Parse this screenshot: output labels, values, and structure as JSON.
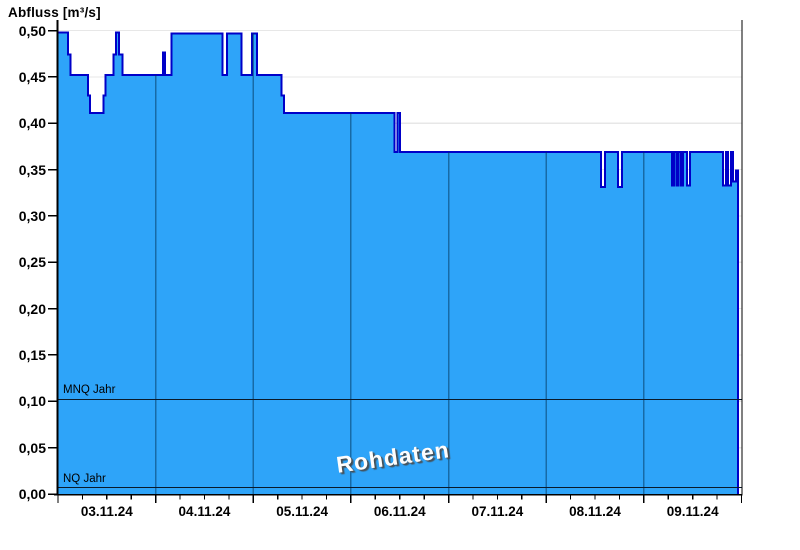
{
  "colors": {
    "area_fill": "#2EA4F9",
    "area_stroke": "#0000C8",
    "grid": "#E7E7E7",
    "day_line": "rgba(0,48,84,0.5)",
    "axis": "#000000",
    "ref_line": "#0A1A2A"
  },
  "chart_data": {
    "type": "area",
    "title": "Abfluss [m³/s]",
    "watermark": "Rohdaten",
    "grid": true,
    "legend": "none",
    "y_axis": {
      "label": "Abfluss [m³/s]",
      "min": 0.0,
      "max": 0.5,
      "tick_step": 0.05,
      "tick_labels": [
        "0,00",
        "0,05",
        "0,10",
        "0,15",
        "0,20",
        "0,25",
        "0,30",
        "0,35",
        "0,40",
        "0,45",
        "0,50"
      ]
    },
    "x_axis": {
      "tick_labels": [
        "03.11.24",
        "04.11.24",
        "05.11.24",
        "06.11.24",
        "07.11.24",
        "08.11.24",
        "09.11.24"
      ],
      "days": 7,
      "minor_ticks_per_day": 4
    },
    "reference_lines": [
      {
        "label": "MNQ Jahr",
        "value": 0.102
      },
      {
        "label": "NQ Jahr",
        "value": 0.007
      }
    ],
    "series": [
      {
        "name": "Abfluss Rohdaten",
        "style": "step-area",
        "unit": "m³/s",
        "points_day_value": [
          [
            0.0,
            0.498
          ],
          [
            0.102,
            0.474
          ],
          [
            0.128,
            0.452
          ],
          [
            0.307,
            0.43
          ],
          [
            0.328,
            0.411
          ],
          [
            0.464,
            0.43
          ],
          [
            0.484,
            0.452
          ],
          [
            0.568,
            0.474
          ],
          [
            0.594,
            0.498
          ],
          [
            0.625,
            0.474
          ],
          [
            0.66,
            0.452
          ],
          [
            1.075,
            0.476
          ],
          [
            1.096,
            0.452
          ],
          [
            1.164,
            0.497
          ],
          [
            1.686,
            0.452
          ],
          [
            1.733,
            0.497
          ],
          [
            1.881,
            0.452
          ],
          [
            1.986,
            0.497
          ],
          [
            2.038,
            0.452
          ],
          [
            2.29,
            0.43
          ],
          [
            2.314,
            0.411
          ],
          [
            3.445,
            0.369
          ],
          [
            3.478,
            0.411
          ],
          [
            3.502,
            0.369
          ],
          [
            5.56,
            0.331
          ],
          [
            5.601,
            0.369
          ],
          [
            5.734,
            0.331
          ],
          [
            5.775,
            0.369
          ],
          [
            6.287,
            0.333
          ],
          [
            6.307,
            0.369
          ],
          [
            6.333,
            0.333
          ],
          [
            6.353,
            0.369
          ],
          [
            6.379,
            0.333
          ],
          [
            6.399,
            0.369
          ],
          [
            6.44,
            0.333
          ],
          [
            6.471,
            0.369
          ],
          [
            6.809,
            0.333
          ],
          [
            6.839,
            0.369
          ],
          [
            6.86,
            0.333
          ],
          [
            6.891,
            0.369
          ],
          [
            6.911,
            0.337
          ],
          [
            6.942,
            0.349
          ]
        ],
        "end_day": 6.963
      }
    ]
  }
}
